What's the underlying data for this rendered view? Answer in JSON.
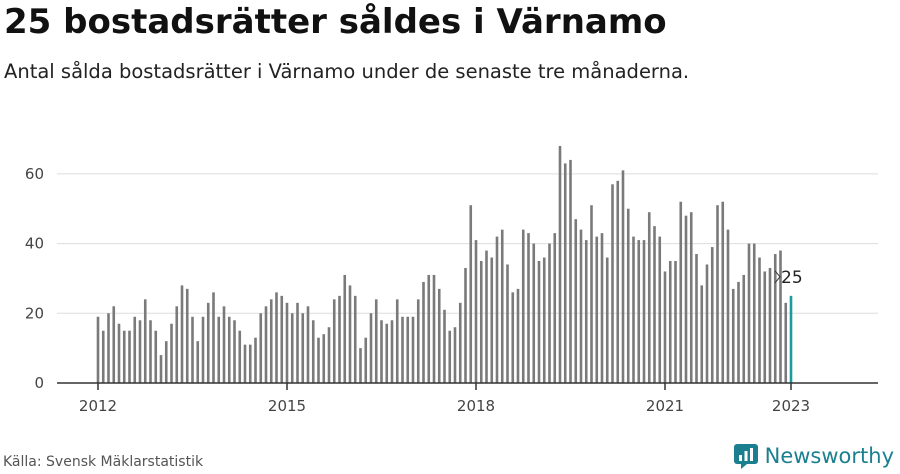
{
  "header": {
    "title": "25 bostadsrätter såldes i Värnamo",
    "subtitle": "Antal sålda bostadsrätter i Värnamo under de senaste tre månaderna."
  },
  "footer": {
    "source": "Källa: Svensk Mäklarstatistik",
    "brand": "Newsworthy"
  },
  "colors": {
    "bar": "#7a7a7a",
    "highlight": "#1a9c9a",
    "grid": "#dddddd",
    "axis": "#333333"
  },
  "chart_data": {
    "type": "bar",
    "x_start": "2012-01",
    "x_end": "2023-01",
    "x_ticks": [
      "2012",
      "2015",
      "2018",
      "2021",
      "2023"
    ],
    "y_ticks": [
      0,
      20,
      40,
      60
    ],
    "ylim": [
      0,
      70
    ],
    "grid": true,
    "highlight_label": "25",
    "values": [
      19,
      15,
      20,
      22,
      17,
      15,
      15,
      19,
      18,
      24,
      18,
      15,
      8,
      12,
      17,
      22,
      28,
      27,
      19,
      12,
      19,
      23,
      26,
      19,
      22,
      19,
      18,
      15,
      11,
      11,
      13,
      20,
      22,
      24,
      26,
      25,
      23,
      20,
      23,
      20,
      22,
      18,
      13,
      14,
      16,
      24,
      25,
      31,
      28,
      25,
      10,
      13,
      20,
      24,
      18,
      17,
      18,
      24,
      19,
      19,
      19,
      24,
      29,
      31,
      31,
      27,
      21,
      15,
      16,
      23,
      33,
      51,
      41,
      35,
      38,
      36,
      42,
      44,
      34,
      26,
      27,
      44,
      43,
      40,
      35,
      36,
      40,
      43,
      68,
      63,
      64,
      47,
      44,
      41,
      51,
      42,
      43,
      36,
      57,
      58,
      61,
      50,
      42,
      41,
      41,
      49,
      45,
      42,
      32,
      35,
      35,
      52,
      48,
      49,
      37,
      28,
      34,
      39,
      51,
      52,
      44,
      27,
      29,
      31,
      40,
      40,
      36,
      32,
      33,
      37,
      38,
      23,
      25
    ]
  }
}
